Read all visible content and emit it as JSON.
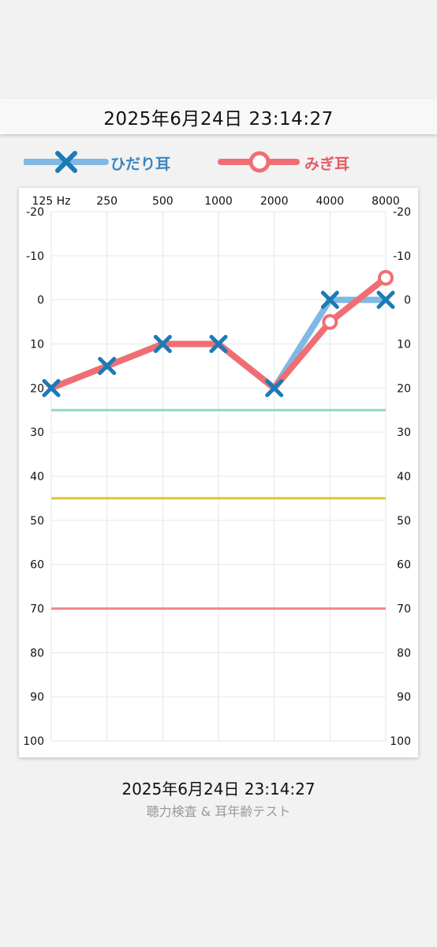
{
  "header": {
    "datetime": "2025年6月24日 23:14:27"
  },
  "legend": {
    "left": {
      "label": "ひだり耳",
      "color": "#7fb9e4",
      "marker_color": "#1b7bb5",
      "marker": "x-icon"
    },
    "right": {
      "label": "みぎ耳",
      "color": "#f06e73",
      "marker": "circle-icon"
    }
  },
  "chart_data": {
    "type": "line",
    "x_categories": [
      "125 Hz",
      "250",
      "500",
      "1000",
      "2000",
      "4000",
      "8000"
    ],
    "y_ticks": [
      -20,
      -10,
      0,
      10,
      20,
      30,
      40,
      50,
      60,
      70,
      80,
      90,
      100
    ],
    "ylim": [
      -20,
      100
    ],
    "y_inverted": true,
    "grid": true,
    "legend_position": "top",
    "series": [
      {
        "name": "ひだり耳",
        "values": [
          20,
          15,
          10,
          10,
          20,
          0,
          0
        ],
        "color": "#7fb9e4",
        "marker_color": "#1b7bb5",
        "marker": "x"
      },
      {
        "name": "みぎ耳",
        "values": [
          20,
          15,
          10,
          10,
          20,
          5,
          -5
        ],
        "color": "#f06e73",
        "marker": "circle"
      }
    ],
    "reference_lines": [
      {
        "value": 25,
        "color": "#8fd8c7"
      },
      {
        "value": 45,
        "color": "#dcc734"
      },
      {
        "value": 70,
        "color": "#f08a8a"
      }
    ]
  },
  "footer": {
    "datetime": "2025年6月24日 23:14:27",
    "app_name": "聴力検査 & 耳年齢テスト"
  }
}
